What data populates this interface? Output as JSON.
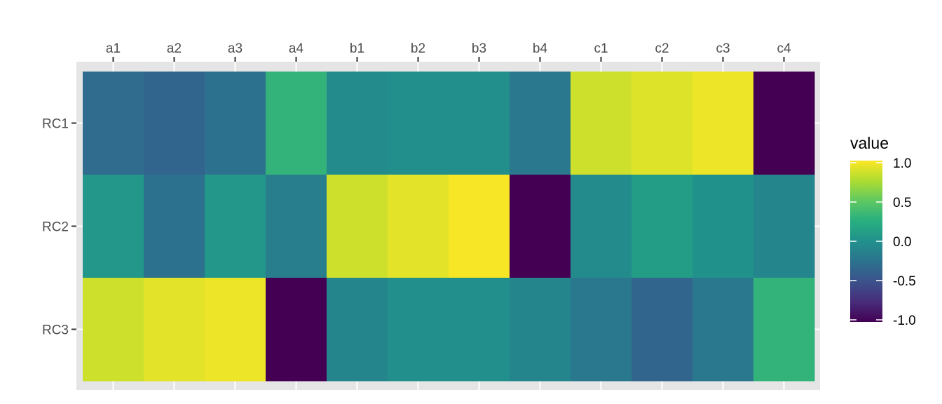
{
  "chart_data": {
    "type": "heatmap",
    "x_categories": [
      "a1",
      "a2",
      "a3",
      "a4",
      "b1",
      "b2",
      "b3",
      "b4",
      "c1",
      "c2",
      "c3",
      "c4"
    ],
    "y_categories": [
      "RC1",
      "RC2",
      "RC3"
    ],
    "values": [
      [
        -0.3,
        -0.35,
        -0.25,
        0.3,
        -0.05,
        -0.02,
        -0.02,
        -0.2,
        0.85,
        0.9,
        0.95,
        -1.0
      ],
      [
        0.05,
        -0.25,
        0.05,
        -0.15,
        0.85,
        0.92,
        0.98,
        -1.0,
        -0.05,
        0.1,
        0.0,
        -0.1
      ],
      [
        0.85,
        0.92,
        0.95,
        -1.0,
        -0.1,
        -0.02,
        -0.02,
        -0.1,
        -0.2,
        -0.35,
        -0.2,
        0.3
      ]
    ],
    "x_axis_position": "top",
    "panel_background": "#e5e5e5",
    "grid": true,
    "colormap": "viridis",
    "legend": {
      "title": "value",
      "position": "right",
      "range": [
        -1.0,
        1.0
      ],
      "ticks": [
        1.0,
        0.5,
        0.0,
        -0.5,
        -1.0
      ],
      "tick_labels": [
        "1.0",
        "0.5",
        "0.0",
        "-0.5",
        "-1.0"
      ]
    }
  }
}
